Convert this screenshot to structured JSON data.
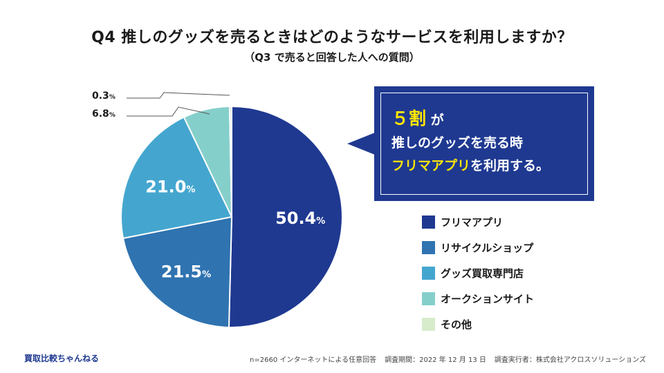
{
  "title": "Q4 推しのグッズを売るときはどのようなサービスを利用しますか？",
  "subtitle": "（Q3 で売ると回答した人への質問）",
  "callout": {
    "line1_number": "５割",
    "line1_suffix": "が",
    "line2": "推しのグッズを売る時",
    "line3_highlight": "フリマアプリ",
    "line3_suffix": "を利用する。"
  },
  "percent_sign": "%",
  "footer": {
    "brand": "買取比較ちゃんねる",
    "note": "n=2660 インターネットによる任意回答",
    "period": "調査期間：2022 年 12 月 13 日",
    "organizer": "調査実行者：株式会社アクロスソリューションズ"
  },
  "chart_data": {
    "type": "pie",
    "title": "Q4 推しのグッズを売るときはどのようなサービスを利用しますか？",
    "start": "12 o'clock",
    "direction": "clockwise",
    "legend_position": "right",
    "slices": [
      {
        "label": "フリマアプリ",
        "value": 50.4,
        "display": "50.4",
        "color": "#1f3991"
      },
      {
        "label": "リサイクルショップ",
        "value": 21.5,
        "display": "21.5",
        "color": "#2f73b0"
      },
      {
        "label": "グッズ買取専門店",
        "value": 21.0,
        "display": "21.0",
        "color": "#44a6cf"
      },
      {
        "label": "オークションサイト",
        "value": 6.8,
        "display": "6.8",
        "color": "#85cfcb"
      },
      {
        "label": "その他",
        "value": 0.3,
        "display": "0.3",
        "color": "#d6eccb"
      }
    ]
  }
}
